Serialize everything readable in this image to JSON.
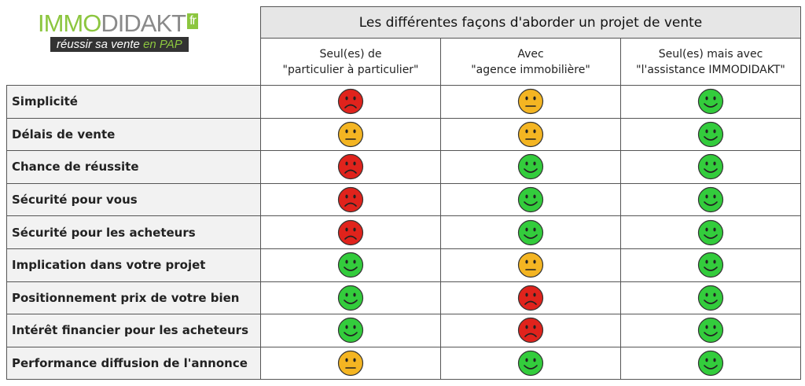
{
  "logo": {
    "part1": "IMMO",
    "part2": "DIDAKT",
    "suffix": "fr",
    "tagline": "réussir sa vente",
    "tagline_end": "en PAP"
  },
  "table": {
    "title": "Les différentes façons d'aborder un projet de vente",
    "face_colors": [
      "#e0231c",
      "#f4b522",
      "#33cc3c"
    ],
    "columns": [
      [
        "Seul(es) de",
        "\"particulier à particulier\""
      ],
      [
        "Avec",
        "\"agence immobilière\""
      ],
      [
        "Seul(es) mais avec",
        "\"l'assistance IMMODIDAKT\""
      ]
    ],
    "rows": [
      {
        "label": "Simplicité",
        "cells": [
          "#e0231c",
          "#f4b522",
          "#33cc3c"
        ]
      },
      {
        "label": "Délais de vente",
        "cells": [
          "#f4b522",
          "#f4b522",
          "#33cc3c"
        ]
      },
      {
        "label": "Chance de réussite",
        "cells": [
          "#e0231c",
          "#33cc3c",
          "#33cc3c"
        ]
      },
      {
        "label": "Sécurité pour vous",
        "cells": [
          "#e0231c",
          "#33cc3c",
          "#33cc3c"
        ]
      },
      {
        "label": "Sécurité pour les acheteurs",
        "cells": [
          "#e0231c",
          "#33cc3c",
          "#33cc3c"
        ]
      },
      {
        "label": "Implication dans votre projet",
        "cells": [
          "#33cc3c",
          "#f4b522",
          "#33cc3c"
        ]
      },
      {
        "label": "Positionnement prix de votre bien",
        "cells": [
          "#33cc3c",
          "#e0231c",
          "#33cc3c"
        ]
      },
      {
        "label": "Intérêt financier pour les acheteurs",
        "cells": [
          "#33cc3c",
          "#e0231c",
          "#33cc3c"
        ]
      },
      {
        "label": "Performance diffusion de l'annonce",
        "cells": [
          "#f4b522",
          "#33cc3c",
          "#33cc3c"
        ]
      }
    ]
  }
}
